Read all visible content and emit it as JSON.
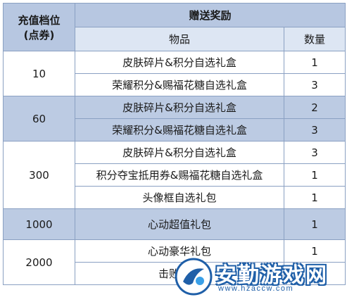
{
  "table": {
    "header": {
      "tier_label_line1": "充值档位",
      "tier_label_line2": "(点券)",
      "reward_label": "赠送奖励",
      "item_label": "物品",
      "qty_label": "数量"
    },
    "tiers": [
      {
        "tier": "10",
        "items": [
          {
            "name": "皮肤碎片&积分自选礼盒",
            "qty": "1"
          },
          {
            "name": "荣耀积分&赐福花糖自选礼盒",
            "qty": "3"
          }
        ]
      },
      {
        "tier": "60",
        "items": [
          {
            "name": "皮肤碎片&积分自选礼盒",
            "qty": "2"
          },
          {
            "name": "荣耀积分&赐福花糖自选礼盒",
            "qty": "3"
          }
        ]
      },
      {
        "tier": "300",
        "items": [
          {
            "name": "皮肤碎片&积分自选礼盒",
            "qty": "3"
          },
          {
            "name": "积分夺宝抵用券&赐福花糖自选礼盒",
            "qty": "1"
          },
          {
            "name": "头像框自选礼包",
            "qty": "1"
          }
        ]
      },
      {
        "tier": "1000",
        "items": [
          {
            "name": "心动超值礼包",
            "qty": "1"
          }
        ]
      },
      {
        "tier": "2000",
        "items": [
          {
            "name": "心动豪华礼包",
            "qty": "1"
          },
          {
            "name": "击败特效",
            "qty": "1"
          }
        ]
      }
    ]
  },
  "watermark": {
    "text": "安勤游戏网",
    "url": "www.hzaccw.com"
  },
  "colors": {
    "header_bg": "#b7c7e1",
    "band_blue": "#bccbe3",
    "border": "#8aa0c2",
    "watermark_blue": "#1f5fa8"
  }
}
